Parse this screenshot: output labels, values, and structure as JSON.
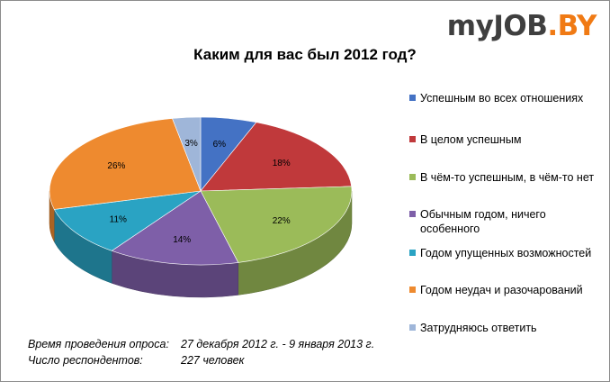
{
  "logo": {
    "text_a": "my",
    "text_b": "JOB",
    "text_c": ".BY"
  },
  "chart_data": {
    "type": "pie",
    "title": "Каким для вас был 2012 год?",
    "legend_position": "right",
    "slices": [
      {
        "label": "Успешным во всех отношениях",
        "value": 6,
        "display": "6%",
        "color": "#4472c4"
      },
      {
        "label": "В целом успешным",
        "value": 18,
        "display": "18%",
        "color": "#c0393b"
      },
      {
        "label": "В чём-то успешным, в чём-то нет",
        "value": 22,
        "display": "22%",
        "color": "#9bbb59"
      },
      {
        "label": "Обычным годом, ничего особенного",
        "value": 14,
        "display": "14%",
        "color": "#7e5fa8"
      },
      {
        "label": "Годом упущенных возможностей",
        "value": 11,
        "display": "11%",
        "color": "#2aa3c3"
      },
      {
        "label": "Годом неудач и разочарований",
        "value": 26,
        "display": "26%",
        "color": "#ee8a2f"
      },
      {
        "label": "Затрудняюсь ответить",
        "value": 3,
        "display": "3%",
        "color": "#9fb6d9"
      }
    ]
  },
  "footer": {
    "period_label": "Время проведения опроса:",
    "period_value": "27 декабря 2012 г. - 9 января 2013 г.",
    "respondents_label": "Число респондентов:",
    "respondents_value": "227 человек"
  }
}
